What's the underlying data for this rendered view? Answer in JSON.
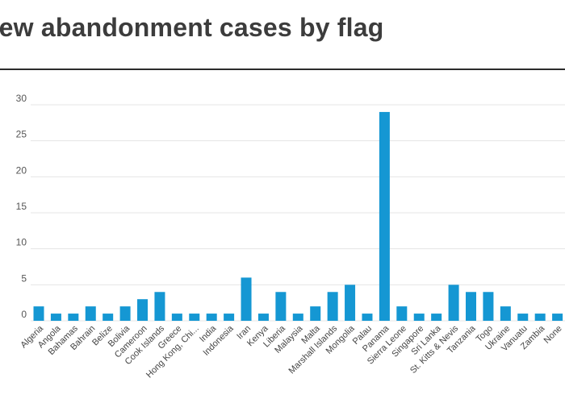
{
  "chart_data": {
    "type": "bar",
    "title": "rew abandonment cases by flag",
    "xlabel": "",
    "ylabel": "",
    "ylim": [
      0,
      30
    ],
    "y_ticks": [
      "0",
      "5",
      "10",
      "15",
      "20",
      "25",
      "30"
    ],
    "grid": true,
    "bar_color": "#1597d3",
    "categories": [
      "Algeria",
      "Angola",
      "Bahamas",
      "Bahrain",
      "Belize",
      "Bolivia",
      "Cameroon",
      "Cook Islands",
      "Greece",
      "Hong Kong, Chi...",
      "India",
      "Indonesia",
      "Iran",
      "Kenya",
      "Liberia",
      "Malaysia",
      "Malta",
      "Marshall Islands",
      "Mongolia",
      "Palau",
      "Panama",
      "Sierra Leone",
      "Singapore",
      "Sri Lanka",
      "St. Kitts & Nevis",
      "Tanzania",
      "Togo",
      "Ukraine",
      "Vanuatu",
      "Zambia",
      "None"
    ],
    "values": [
      2,
      1,
      1,
      2,
      1,
      2,
      3,
      4,
      1,
      1,
      1,
      1,
      6,
      1,
      4,
      1,
      2,
      4,
      5,
      1,
      29,
      2,
      1,
      1,
      5,
      4,
      4,
      2,
      1,
      1,
      1
    ]
  }
}
